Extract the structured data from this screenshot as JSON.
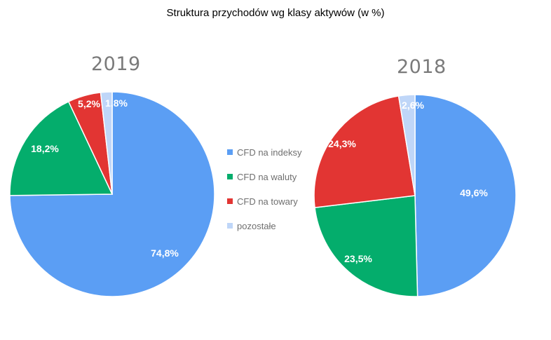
{
  "title": "Struktura przychodów wg klasy aktywów (w %)",
  "colors": {
    "cfd_indeksy": "#5b9ef4",
    "cfd_waluty": "#04ad6c",
    "cfd_towary": "#e23533",
    "pozostale": "#bfd6f8"
  },
  "chart_data": [
    {
      "type": "pie",
      "title": "2019",
      "categories": [
        "CFD na indeksy",
        "CFD na waluty",
        "CFD na towary",
        "pozostałe"
      ],
      "values": [
        74.8,
        18.2,
        5.2,
        1.8
      ],
      "data_labels": [
        "74,8%",
        "18,2%",
        "5,2%",
        "1,8%"
      ],
      "start": "12 o'clock",
      "direction": "clockwise",
      "legend": "center (shared)"
    },
    {
      "type": "pie",
      "title": "2018",
      "categories": [
        "CFD na indeksy",
        "CFD na waluty",
        "CFD na towary",
        "pozostałe"
      ],
      "values": [
        49.6,
        23.5,
        24.3,
        2.6
      ],
      "data_labels": [
        "49,6%",
        "23,5%",
        "24,3%",
        "2,6%"
      ],
      "start": "12 o'clock",
      "direction": "clockwise",
      "legend": "center (shared)"
    }
  ],
  "legend": {
    "items": [
      {
        "label": "CFD na indeksy",
        "color": "#5b9ef4"
      },
      {
        "label": "CFD na waluty",
        "color": "#04ad6c"
      },
      {
        "label": "CFD na towary",
        "color": "#e23533"
      },
      {
        "label": "pozostałe",
        "color": "#bfd6f8"
      }
    ]
  }
}
